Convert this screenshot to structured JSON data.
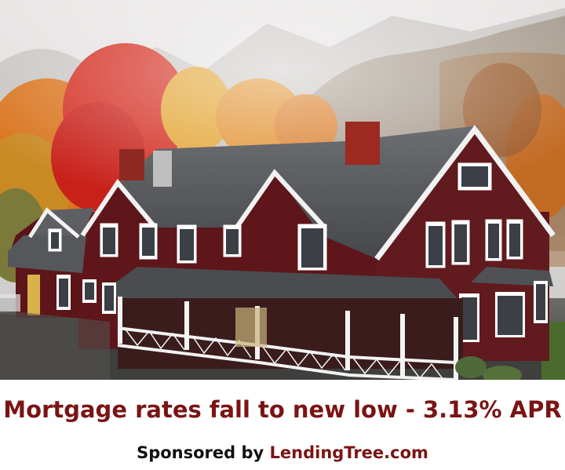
{
  "ad": {
    "headline": "Mortgage rates fall to new low - 3.13% APR",
    "sponsor_prefix": "Sponsored by ",
    "sponsor_name": "LendingTree.com",
    "image_subject": "red farmhouse with autumn trees in fog"
  },
  "colors": {
    "headline": "#7a1414",
    "sponsor_text": "#111111",
    "brand": "#7a1414",
    "background": "#ffffff"
  }
}
